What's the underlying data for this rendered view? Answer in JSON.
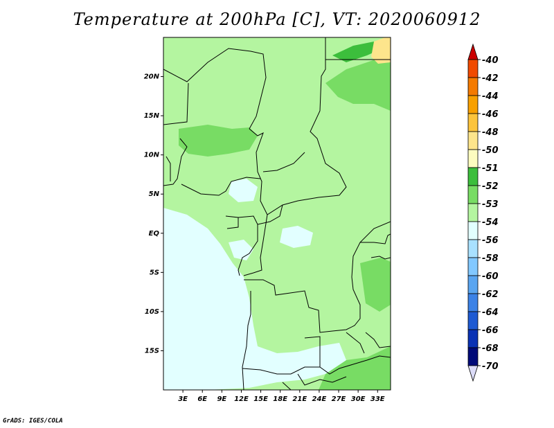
{
  "title": "Temperature at 200hPa [C], VT: 2020060912",
  "credit": "GrADS: IGES/COLA",
  "map": {
    "lon_range": [
      0,
      35
    ],
    "lat_range": [
      -20,
      25
    ],
    "lat_ticks": [
      {
        "value": 20,
        "label": "20N"
      },
      {
        "value": 15,
        "label": "15N"
      },
      {
        "value": 10,
        "label": "10N"
      },
      {
        "value": 5,
        "label": "5N"
      },
      {
        "value": 0,
        "label": "EQ"
      },
      {
        "value": -5,
        "label": "5S"
      },
      {
        "value": -10,
        "label": "10S"
      },
      {
        "value": -15,
        "label": "15S"
      }
    ],
    "lon_ticks": [
      {
        "value": 3,
        "label": "3E"
      },
      {
        "value": 6,
        "label": "6E"
      },
      {
        "value": 9,
        "label": "9E"
      },
      {
        "value": 12,
        "label": "12E"
      },
      {
        "value": 15,
        "label": "15E"
      },
      {
        "value": 18,
        "label": "18E"
      },
      {
        "value": 21,
        "label": "21E"
      },
      {
        "value": 24,
        "label": "24E"
      },
      {
        "value": 27,
        "label": "27E"
      },
      {
        "value": 30,
        "label": "30E"
      },
      {
        "value": 33,
        "label": "33E"
      }
    ]
  },
  "colorbar": {
    "levels": [
      {
        "label": "-40",
        "color": "#e01e00"
      },
      {
        "label": "-42",
        "color": "#f04a00"
      },
      {
        "label": "-44",
        "color": "#f47a00"
      },
      {
        "label": "-46",
        "color": "#f8a000"
      },
      {
        "label": "-48",
        "color": "#fcc43c"
      },
      {
        "label": "-50",
        "color": "#fde58c"
      },
      {
        "label": "-51",
        "color": "#fdfcc0"
      },
      {
        "label": "-52",
        "color": "#3cbe3c"
      },
      {
        "label": "-53",
        "color": "#78dc64"
      },
      {
        "label": "-54",
        "color": "#b4f5a0"
      },
      {
        "label": "-56",
        "color": "#e2ffff"
      },
      {
        "label": "-58",
        "color": "#a9e1ff"
      },
      {
        "label": "-60",
        "color": "#82c8ff"
      },
      {
        "label": "-62",
        "color": "#5aa5f0"
      },
      {
        "label": "-64",
        "color": "#3c82e6"
      },
      {
        "label": "-66",
        "color": "#1e5ad2"
      },
      {
        "label": "-68",
        "color": "#0a32b4"
      },
      {
        "label": "-70",
        "color": "#000a78"
      }
    ],
    "top_triangle_color": "#cc0000",
    "bottom_triangle_color": "#dcdcf8"
  },
  "field_colors": {
    "cold": "#e2ffff",
    "mid": "#b4f5a0",
    "warm": "#78dc64",
    "warmer": "#3cbe3c",
    "warmest": "#fde58c"
  }
}
